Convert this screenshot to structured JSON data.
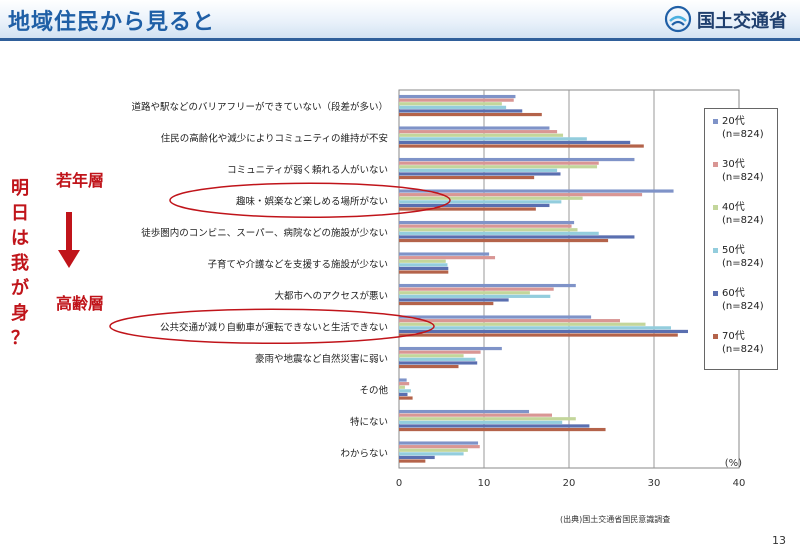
{
  "header": {
    "title": "地域住民から見ると",
    "org_name": "国土交通省"
  },
  "side_labels": {
    "vertical_text": [
      "明",
      "日",
      "は",
      "我",
      "が",
      "身",
      "？"
    ],
    "young_label": "若年層",
    "old_label": "高齢層"
  },
  "footnote": "(出典)国土交通省国民意識調査",
  "page_number": "13",
  "colors": {
    "title": "#1f5fa6",
    "accent_red": "#c0141a",
    "series": [
      "#7f93c8",
      "#d99694",
      "#c3d69b",
      "#93cddd",
      "#5a6fb0",
      "#b4634a"
    ]
  },
  "chart_data": {
    "type": "bar",
    "orientation": "horizontal",
    "categories": [
      "道路や駅などのバリアフリーができていない（段差が多い）",
      "住民の高齢化や減少によりコミュニティの維持が不安",
      "コミュニティが弱く頼れる人がいない",
      "趣味・娯楽など楽しめる場所がない",
      "徒歩圏内のコンビニ、スーパー、病院などの施設が少ない",
      "子育てや介護などを支援する施設が少ない",
      "大都市へのアクセスが悪い",
      "公共交通が減り自動車が運転できないと生活できない",
      "豪雨や地震など自然災害に弱い",
      "その他",
      "特にない",
      "わからない"
    ],
    "series": [
      {
        "name": "20代",
        "n": "(n=824)",
        "values": [
          13.7,
          17.7,
          27.7,
          32.3,
          20.6,
          10.6,
          20.8,
          22.6,
          12.1,
          0.9,
          15.3,
          9.3
        ]
      },
      {
        "name": "30代",
        "n": "(n=824)",
        "values": [
          13.5,
          18.6,
          23.5,
          28.6,
          20.3,
          11.3,
          18.2,
          26.0,
          9.6,
          1.2,
          18.0,
          9.5
        ]
      },
      {
        "name": "40代",
        "n": "(n=824)",
        "values": [
          12.1,
          19.3,
          23.3,
          21.6,
          21.0,
          5.5,
          15.4,
          29.0,
          7.6,
          0.7,
          20.8,
          8.1
        ]
      },
      {
        "name": "50代",
        "n": "(n=824)",
        "values": [
          12.6,
          22.1,
          18.6,
          19.1,
          23.5,
          5.7,
          17.8,
          32.0,
          9.0,
          1.4,
          19.2,
          7.6
        ]
      },
      {
        "name": "60代",
        "n": "(n=824)",
        "values": [
          14.5,
          27.2,
          19.0,
          17.7,
          27.7,
          5.8,
          12.9,
          34.0,
          9.2,
          1.0,
          22.4,
          4.2
        ]
      },
      {
        "name": "70代",
        "n": "(n=824)",
        "values": [
          16.8,
          28.8,
          15.9,
          16.1,
          24.6,
          5.8,
          11.1,
          32.8,
          7.0,
          1.6,
          24.3,
          3.1
        ]
      }
    ],
    "xlim": [
      0,
      40
    ],
    "xticks": [
      "0",
      "10",
      "20",
      "30",
      "40"
    ],
    "unit_label": "(%)",
    "highlighted_categories": [
      "趣味・娯楽など楽しめる場所がない",
      "公共交通が減り自動車が運転できないと生活できない"
    ]
  }
}
